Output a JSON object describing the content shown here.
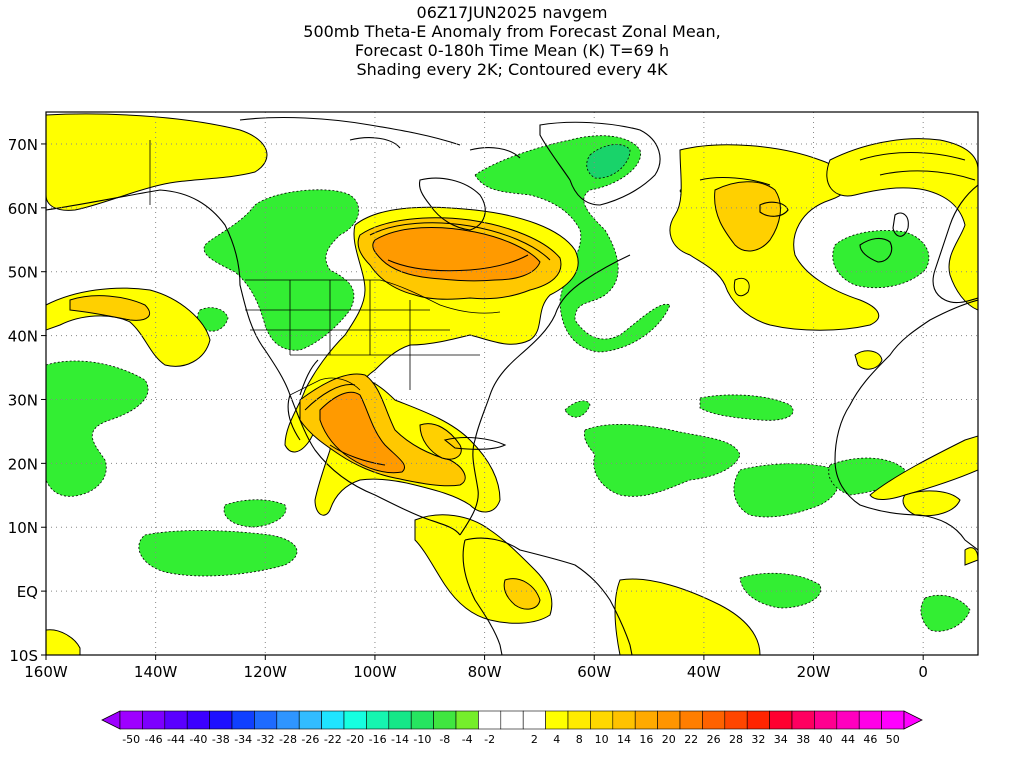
{
  "title": {
    "lines": [
      "06Z17JUN2025 navgem",
      "500mb Theta-E Anomaly from Forecast Zonal Mean,",
      "Forecast 0-180h Time Mean (K) T=69 h",
      "Shading every 2K; Contoured every 4K"
    ]
  },
  "map": {
    "lon_range": [
      -160,
      10
    ],
    "lat_range": [
      -10,
      75
    ],
    "x_ticks": [
      {
        "value": -160,
        "label": "160W"
      },
      {
        "value": -140,
        "label": "140W"
      },
      {
        "value": -120,
        "label": "120W"
      },
      {
        "value": -100,
        "label": "100W"
      },
      {
        "value": -80,
        "label": "80W"
      },
      {
        "value": -60,
        "label": "60W"
      },
      {
        "value": -40,
        "label": "40W"
      },
      {
        "value": -20,
        "label": "20W"
      },
      {
        "value": 0,
        "label": "0"
      }
    ],
    "y_ticks": [
      {
        "value": 70,
        "label": "70N"
      },
      {
        "value": 60,
        "label": "60N"
      },
      {
        "value": 50,
        "label": "50N"
      },
      {
        "value": 40,
        "label": "40N"
      },
      {
        "value": 30,
        "label": "30N"
      },
      {
        "value": 20,
        "label": "20N"
      },
      {
        "value": 10,
        "label": "10N"
      },
      {
        "value": 0,
        "label": "EQ"
      },
      {
        "value": -10,
        "label": "10S"
      }
    ],
    "grid": "dotted",
    "shading_colors": {
      "green": "#33ee33",
      "dark_green": "#19d36a",
      "yellow": "#ffff00",
      "gold": "#ffd000",
      "orange": "#ff9500"
    },
    "colorbar": {
      "labels": [
        "-50",
        "-46",
        "-44",
        "-40",
        "-38",
        "-34",
        "-32",
        "-28",
        "-26",
        "-22",
        "-20",
        "-16",
        "-14",
        "-10",
        "-8",
        "-4",
        "-2",
        "2",
        "4",
        "8",
        "10",
        "14",
        "16",
        "20",
        "22",
        "26",
        "28",
        "32",
        "34",
        "38",
        "40",
        "44",
        "46",
        "50"
      ],
      "colors": [
        "#9e00ff",
        "#7d00ff",
        "#5a00ff",
        "#3c00ff",
        "#1e10ff",
        "#1040ff",
        "#1e6bff",
        "#2f95ff",
        "#32bcff",
        "#1fe4ff",
        "#16ffe0",
        "#16f5b0",
        "#16e888",
        "#26e460",
        "#40e640",
        "#75ee2b",
        "#ffffff",
        "#ffffff",
        "#ffffff",
        "#ffff00",
        "#ffec00",
        "#ffd800",
        "#ffc200",
        "#ffaa00",
        "#ff9500",
        "#ff7e00",
        "#ff6200",
        "#ff4600",
        "#ff2400",
        "#ff0030",
        "#ff0060",
        "#ff0090",
        "#ff00bf",
        "#ff00e8",
        "#ff00ff"
      ]
    }
  }
}
